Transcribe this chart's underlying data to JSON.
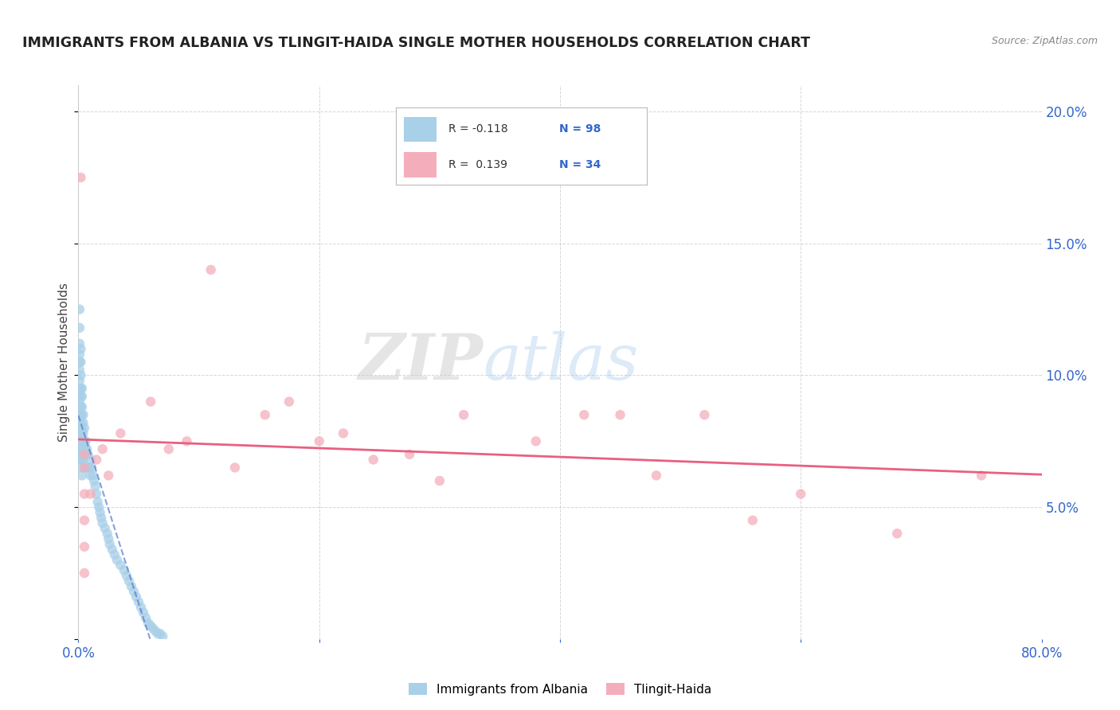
{
  "title": "IMMIGRANTS FROM ALBANIA VS TLINGIT-HAIDA SINGLE MOTHER HOUSEHOLDS CORRELATION CHART",
  "source": "Source: ZipAtlas.com",
  "ylabel": "Single Mother Households",
  "xlim": [
    0.0,
    0.8
  ],
  "ylim": [
    0.0,
    0.21
  ],
  "legend_label1": "Immigrants from Albania",
  "legend_label2": "Tlingit-Haida",
  "R1": "-0.118",
  "N1": "98",
  "R2": "0.139",
  "N2": "34",
  "color_blue": "#A8D0E8",
  "color_pink": "#F4AEBB",
  "line_color_blue": "#5577CC",
  "line_color_pink": "#E86080",
  "background_color": "#ffffff",
  "grid_color": "#cccccc",
  "blue_scatter_x": [
    0.001,
    0.001,
    0.001,
    0.001,
    0.001,
    0.001,
    0.001,
    0.001,
    0.001,
    0.001,
    0.001,
    0.001,
    0.001,
    0.001,
    0.001,
    0.002,
    0.002,
    0.002,
    0.002,
    0.002,
    0.002,
    0.002,
    0.002,
    0.002,
    0.002,
    0.002,
    0.002,
    0.002,
    0.003,
    0.003,
    0.003,
    0.003,
    0.003,
    0.003,
    0.003,
    0.003,
    0.003,
    0.003,
    0.003,
    0.004,
    0.004,
    0.004,
    0.004,
    0.004,
    0.004,
    0.004,
    0.005,
    0.005,
    0.005,
    0.005,
    0.005,
    0.006,
    0.006,
    0.006,
    0.006,
    0.007,
    0.007,
    0.007,
    0.008,
    0.008,
    0.009,
    0.01,
    0.01,
    0.011,
    0.012,
    0.013,
    0.014,
    0.015,
    0.016,
    0.017,
    0.018,
    0.019,
    0.02,
    0.022,
    0.024,
    0.025,
    0.026,
    0.028,
    0.03,
    0.032,
    0.035,
    0.038,
    0.04,
    0.042,
    0.044,
    0.046,
    0.048,
    0.05,
    0.052,
    0.054,
    0.056,
    0.058,
    0.06,
    0.062,
    0.064,
    0.066,
    0.068,
    0.07
  ],
  "blue_scatter_y": [
    0.125,
    0.118,
    0.112,
    0.108,
    0.105,
    0.102,
    0.098,
    0.095,
    0.092,
    0.09,
    0.088,
    0.085,
    0.082,
    0.08,
    0.078,
    0.11,
    0.105,
    0.1,
    0.095,
    0.092,
    0.088,
    0.085,
    0.082,
    0.078,
    0.075,
    0.072,
    0.07,
    0.068,
    0.095,
    0.092,
    0.088,
    0.085,
    0.08,
    0.075,
    0.072,
    0.07,
    0.068,
    0.065,
    0.062,
    0.085,
    0.082,
    0.078,
    0.075,
    0.072,
    0.07,
    0.068,
    0.08,
    0.075,
    0.072,
    0.07,
    0.065,
    0.075,
    0.072,
    0.07,
    0.065,
    0.072,
    0.07,
    0.065,
    0.07,
    0.065,
    0.065,
    0.068,
    0.062,
    0.065,
    0.062,
    0.06,
    0.058,
    0.055,
    0.052,
    0.05,
    0.048,
    0.046,
    0.044,
    0.042,
    0.04,
    0.038,
    0.036,
    0.034,
    0.032,
    0.03,
    0.028,
    0.026,
    0.024,
    0.022,
    0.02,
    0.018,
    0.016,
    0.014,
    0.012,
    0.01,
    0.008,
    0.006,
    0.005,
    0.004,
    0.003,
    0.002,
    0.002,
    0.001
  ],
  "pink_scatter_x": [
    0.002,
    0.005,
    0.005,
    0.005,
    0.005,
    0.005,
    0.005,
    0.01,
    0.015,
    0.02,
    0.025,
    0.035,
    0.06,
    0.075,
    0.09,
    0.11,
    0.13,
    0.155,
    0.175,
    0.2,
    0.22,
    0.245,
    0.275,
    0.3,
    0.32,
    0.38,
    0.42,
    0.45,
    0.48,
    0.52,
    0.56,
    0.6,
    0.68,
    0.75
  ],
  "pink_scatter_y": [
    0.175,
    0.07,
    0.065,
    0.055,
    0.045,
    0.035,
    0.025,
    0.055,
    0.068,
    0.072,
    0.062,
    0.078,
    0.09,
    0.072,
    0.075,
    0.14,
    0.065,
    0.085,
    0.09,
    0.075,
    0.078,
    0.068,
    0.07,
    0.06,
    0.085,
    0.075,
    0.085,
    0.085,
    0.062,
    0.085,
    0.045,
    0.055,
    0.04,
    0.062
  ]
}
